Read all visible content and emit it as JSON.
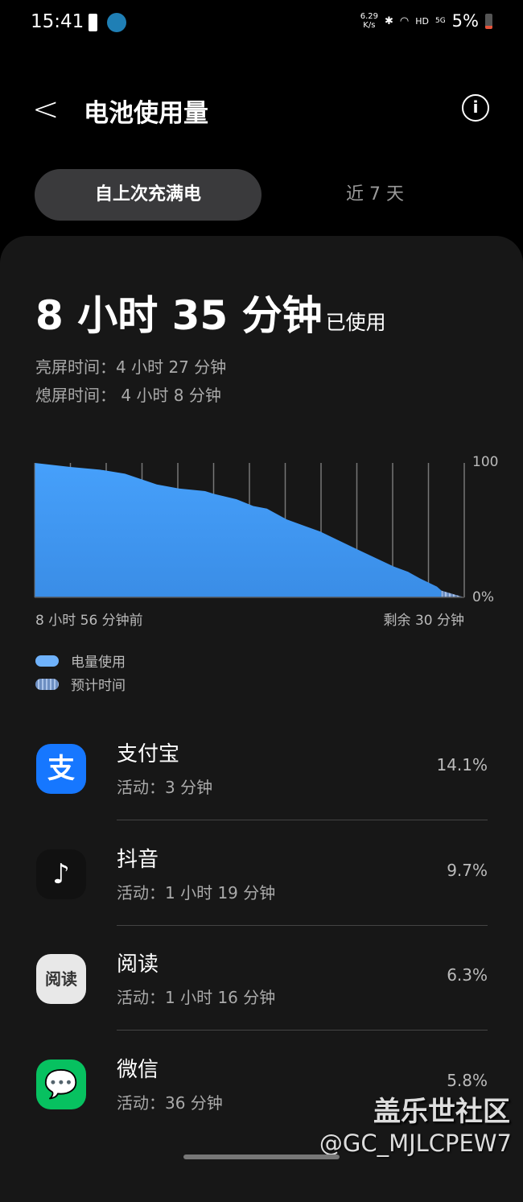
{
  "status": {
    "time": "15:41",
    "speed": "6.29\nK/s",
    "network": "HD",
    "signal": "5G",
    "battery": "5%"
  },
  "header": {
    "title": "电池使用量"
  },
  "tabs": [
    {
      "label": "自上次充满电",
      "active": true
    },
    {
      "label": "近 7 天",
      "active": false
    }
  ],
  "summary": {
    "total": "8 小时 35 分钟",
    "suffix": "已使用",
    "screen_on": "亮屏时间：4 小时 27 分钟",
    "screen_off": "熄屏时间： 4 小时 8 分钟"
  },
  "chart_data": {
    "type": "area",
    "x_unit": "minutes relative to now",
    "xlim": [
      -536,
      30
    ],
    "ylim": [
      0,
      100
    ],
    "y_tick_labels": [
      "100",
      "0%"
    ],
    "x_start_label": "8 小时 56 分钟前",
    "x_end_label": "剩余 30 分钟",
    "grid": "vertical",
    "series": [
      {
        "name": "电量使用",
        "color": "#4aa0fa",
        "points": [
          [
            -536,
            100
          ],
          [
            -489,
            97
          ],
          [
            -450,
            95
          ],
          [
            -417,
            92
          ],
          [
            -375,
            84
          ],
          [
            -346,
            81
          ],
          [
            -311,
            79
          ],
          [
            -300,
            77
          ],
          [
            -270,
            73
          ],
          [
            -248,
            68
          ],
          [
            -230,
            66
          ],
          [
            -204,
            58
          ],
          [
            -160,
            49
          ],
          [
            -112,
            36
          ],
          [
            -63,
            23
          ],
          [
            -44,
            19
          ],
          [
            -28,
            14
          ],
          [
            -6,
            8
          ],
          [
            0,
            5
          ]
        ]
      },
      {
        "name": "预计时间",
        "color": "#7a9fd4",
        "points": [
          [
            0,
            5
          ],
          [
            30,
            0
          ]
        ]
      }
    ]
  },
  "apps": [
    {
      "name": "支付宝",
      "activity": "活动：3 分钟",
      "percent": "14.1%",
      "icon": "支",
      "color": "#1677ff"
    },
    {
      "name": "抖音",
      "activity": "活动：1 小时 19 分钟",
      "percent": "9.7%",
      "icon": "♪",
      "color": "#111111"
    },
    {
      "name": "阅读",
      "activity": "活动：1 小时 16 分钟",
      "percent": "6.3%",
      "icon": "阅读",
      "color": "#e8e8e8"
    },
    {
      "name": "微信",
      "activity": "活动：36 分钟",
      "percent": "5.8%",
      "icon": "💬",
      "color": "#07c160"
    }
  ],
  "watermark": {
    "line1": "盖乐世社区",
    "line2": "@GC_MJLCPEW7"
  }
}
